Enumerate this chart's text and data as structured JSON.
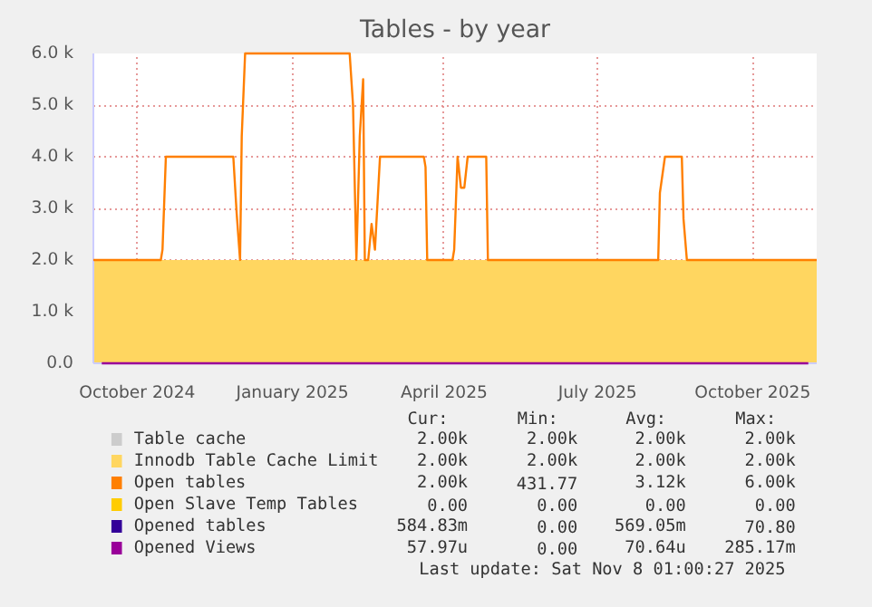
{
  "chart_data": {
    "type": "line",
    "title": "Tables - by year",
    "xlim": [
      "2024-09-05",
      "2025-11-08"
    ],
    "xticks": [
      {
        "value": "2024-10-01",
        "label": "October 2024"
      },
      {
        "value": "2025-01-01",
        "label": "January 2025"
      },
      {
        "value": "2025-04-01",
        "label": "April 2025"
      },
      {
        "value": "2025-07-01",
        "label": "July 2025"
      },
      {
        "value": "2025-10-01",
        "label": "October 2025"
      }
    ],
    "ylim": [
      0,
      6000
    ],
    "yticks": [
      {
        "value": 0,
        "label": "0.0"
      },
      {
        "value": 1000,
        "label": "1.0 k"
      },
      {
        "value": 2000,
        "label": "2.0 k"
      },
      {
        "value": 3000,
        "label": "3.0 k"
      },
      {
        "value": 4000,
        "label": "4.0 k"
      },
      {
        "value": 5000,
        "label": "5.0 k"
      },
      {
        "value": 6000,
        "label": "6.0 k"
      }
    ],
    "grid": true,
    "legend": "bottom",
    "series": [
      {
        "name": "Table cache",
        "color": "#cccccc",
        "values": [
          null
        ]
      },
      {
        "name": "Innodb Table Cache Limit",
        "color": "#ffd660",
        "type": "area",
        "x": [
          "2024-09-05",
          "2025-11-08"
        ],
        "values": [
          2000,
          2000
        ]
      },
      {
        "name": "Open tables",
        "color": "#ff7f00",
        "x": [
          "2024-09-05",
          "2024-10-15",
          "2024-10-16",
          "2024-10-18",
          "2024-11-27",
          "2024-11-29",
          "2024-12-01",
          "2024-12-02",
          "2024-12-04",
          "2025-02-04",
          "2025-02-06",
          "2025-02-08",
          "2025-02-10",
          "2025-02-12",
          "2025-02-13",
          "2025-02-15",
          "2025-02-17",
          "2025-02-19",
          "2025-02-22",
          "2025-03-20",
          "2025-03-21",
          "2025-03-22",
          "2025-04-06",
          "2025-04-07",
          "2025-04-09",
          "2025-04-11",
          "2025-04-13",
          "2025-04-15",
          "2025-04-26",
          "2025-04-27",
          "2025-08-06",
          "2025-08-07",
          "2025-08-10",
          "2025-08-20",
          "2025-08-21",
          "2025-08-23",
          "2025-11-08"
        ],
        "values": [
          2000,
          2000,
          2200,
          4000,
          4000,
          2900,
          2000,
          4400,
          6000,
          6000,
          5000,
          2000,
          4400,
          5500,
          2000,
          2000,
          2700,
          2200,
          4000,
          4000,
          3800,
          2000,
          2000,
          2200,
          4000,
          3400,
          3400,
          4000,
          4000,
          2000,
          2000,
          3300,
          4000,
          4000,
          2800,
          2000,
          2000
        ]
      },
      {
        "name": "Open Slave Temp Tables",
        "color": "#ffcc00",
        "values": [
          null
        ]
      },
      {
        "name": "Opened tables",
        "color": "#330099",
        "values": [
          null
        ]
      },
      {
        "name": "Opened Views",
        "color": "#990099",
        "x": [
          "2024-09-10",
          "2025-11-03"
        ],
        "values": [
          0,
          0
        ]
      }
    ],
    "annotations": [
      "Cur:",
      "Min:",
      "Avg:",
      "Max:",
      "2.00k",
      "2.00k",
      "2.00k",
      "2.00k",
      "2.00k",
      "2.00k",
      "2.00k",
      "2.00k",
      "2.00k",
      "431.77",
      "3.12k",
      "6.00k",
      "0.00",
      "0.00",
      "0.00",
      "0.00",
      "584.83m",
      "0.00",
      "569.05m",
      "70.80",
      "57.97u",
      "0.00",
      "70.64u",
      "285.17m",
      "Last update: Sat Nov  8 01:00:27 2025"
    ]
  }
}
